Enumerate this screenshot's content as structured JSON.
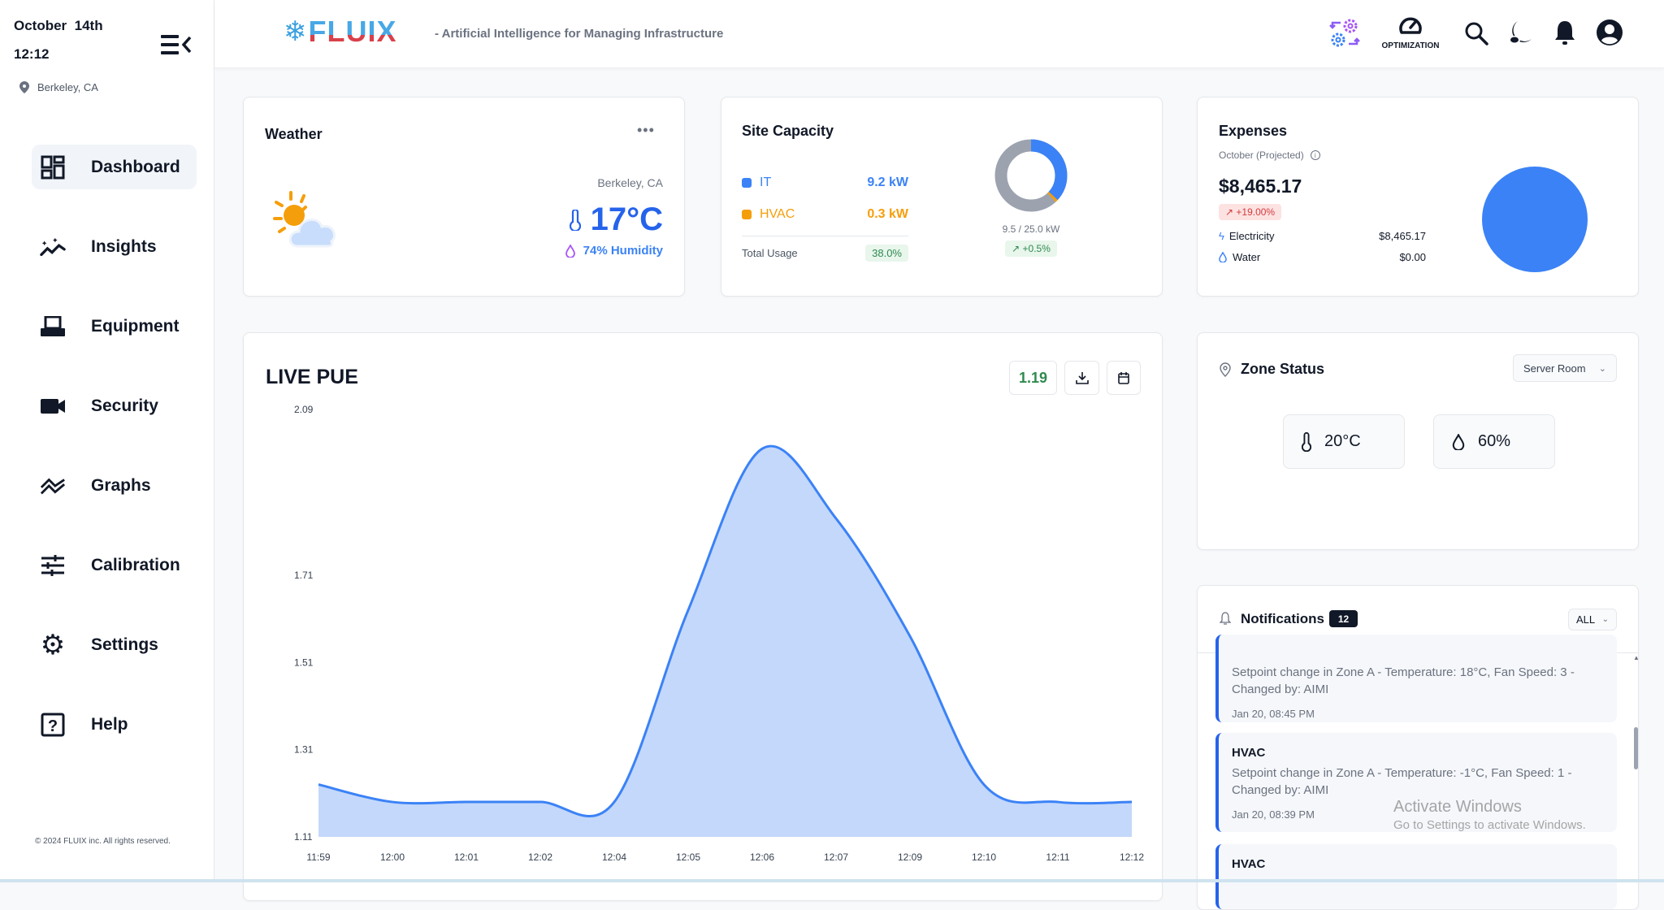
{
  "sidebar": {
    "date": "October  14th",
    "time": "12:12",
    "location": "Berkeley, CA",
    "items": [
      {
        "label": "Dashboard",
        "icon": "dashboard-icon",
        "active": true
      },
      {
        "label": "Insights",
        "icon": "insights-icon"
      },
      {
        "label": "Equipment",
        "icon": "equipment-icon"
      },
      {
        "label": "Security",
        "icon": "camera-icon"
      },
      {
        "label": "Graphs",
        "icon": "graphs-icon"
      },
      {
        "label": "Calibration",
        "icon": "sliders-icon"
      },
      {
        "label": "Settings",
        "icon": "gear-icon"
      },
      {
        "label": "Help",
        "icon": "help-icon"
      }
    ],
    "footer": "© 2024 FLUIX inc. All rights reserved."
  },
  "header": {
    "logo": "FLUIX",
    "tagline": "- Artificial Intelligence for Managing Infrastructure",
    "optimization_label": "OPTIMIZATION"
  },
  "weather": {
    "title": "Weather",
    "location": "Berkeley, CA",
    "temperature": "17°C",
    "humidity": "74% Humidity"
  },
  "site_capacity": {
    "title": "Site Capacity",
    "it_label": "IT",
    "it_value": "9.2 kW",
    "it_kw": 9.2,
    "hvac_label": "HVAC",
    "hvac_value": "0.3 kW",
    "hvac_kw": 0.3,
    "capacity_kw": 25.0,
    "total_label": "Total Usage",
    "total_value": "38.0%",
    "donut_caption": "9.5 / 25.0 kW",
    "trend": "+0.5%",
    "colors": {
      "it": "#3b82f6",
      "hvac": "#f59e0b",
      "rest": "#9ca3af"
    }
  },
  "expenses": {
    "title": "Expenses",
    "subtitle": "October (Projected)",
    "amount": "$8,465.17",
    "trend": "+19.00%",
    "rows": [
      {
        "label": "Electricity",
        "value": "$8,465.17"
      },
      {
        "label": "Water",
        "value": "$0.00"
      }
    ],
    "pie_color": "#3b82f6"
  },
  "pue": {
    "title": "LIVE PUE",
    "current": "1.19"
  },
  "chart_data": {
    "type": "area",
    "title": "LIVE PUE",
    "x": [
      "11:59",
      "12:00",
      "12:01",
      "12:02",
      "12:04",
      "12:05",
      "12:06",
      "12:07",
      "12:09",
      "12:10",
      "12:11",
      "12:12"
    ],
    "values": [
      1.23,
      1.19,
      1.19,
      1.19,
      1.19,
      1.63,
      2.0,
      1.84,
      1.57,
      1.23,
      1.19,
      1.19
    ],
    "yticks": [
      "2.09",
      "1.71",
      "1.51",
      "1.31",
      "1.11"
    ],
    "ylim": [
      1.11,
      2.09
    ],
    "xlabel": "",
    "ylabel": "",
    "color": "#3b82f6",
    "fill": "#c4d8fb"
  },
  "zone": {
    "title": "Zone Status",
    "selected": "Server Room",
    "temperature": "20°C",
    "humidity": "60%"
  },
  "notifications": {
    "title": "Notifications",
    "count": "12",
    "filter": "ALL",
    "items": [
      {
        "type": "",
        "message": "Setpoint change in Zone A - Temperature: 18°C, Fan Speed: 3 - Changed by: AIMI",
        "time": "Jan 20, 08:45 PM"
      },
      {
        "type": "HVAC",
        "message": "Setpoint change in Zone A - Temperature: -1°C, Fan Speed: 1 - Changed by: AIMI",
        "time": "Jan 20, 08:39 PM"
      },
      {
        "type": "HVAC"
      }
    ]
  },
  "watermark": {
    "line1": "Activate Windows",
    "line2": "Go to Settings to activate Windows."
  }
}
